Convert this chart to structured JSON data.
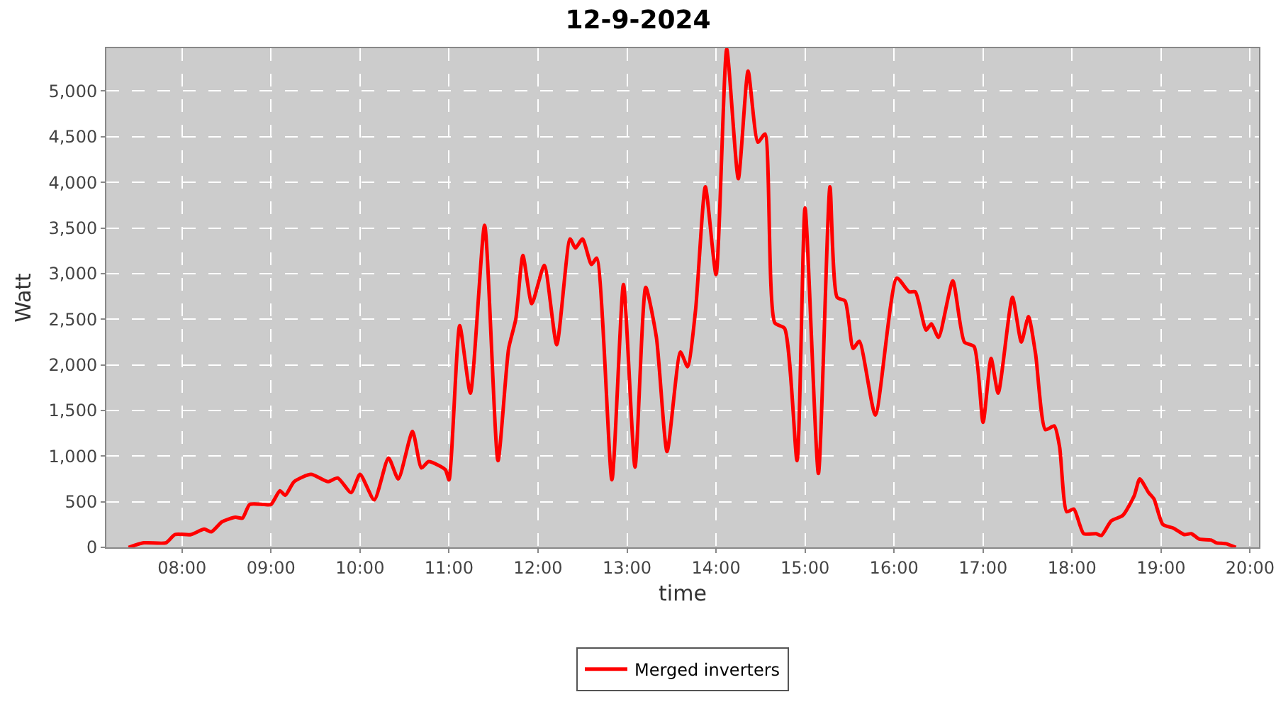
{
  "chart_data": {
    "type": "line",
    "title": "12-9-2024",
    "xlabel": "time",
    "ylabel": "Watt",
    "x": [
      7.4,
      7.57,
      7.82,
      7.92,
      8.1,
      8.25,
      8.33,
      8.45,
      8.6,
      8.68,
      8.76,
      8.92,
      9.0,
      9.1,
      9.16,
      9.26,
      9.45,
      9.64,
      9.75,
      9.9,
      10.0,
      10.16,
      10.32,
      10.43,
      10.59,
      10.69,
      10.77,
      10.88,
      10.96,
      11.0,
      11.12,
      11.24,
      11.4,
      11.55,
      11.67,
      11.75,
      11.83,
      11.93,
      12.07,
      12.21,
      12.36,
      12.42,
      12.5,
      12.6,
      12.66,
      12.83,
      12.96,
      13.09,
      13.21,
      13.33,
      13.45,
      13.6,
      13.68,
      13.77,
      13.88,
      14.0,
      14.12,
      14.25,
      14.36,
      14.47,
      14.55,
      14.66,
      14.77,
      14.91,
      15.0,
      15.15,
      15.28,
      15.36,
      15.45,
      15.54,
      15.61,
      15.79,
      16.03,
      16.17,
      16.24,
      16.36,
      16.42,
      16.5,
      16.66,
      16.79,
      16.9,
      17.0,
      17.09,
      17.17,
      17.33,
      17.43,
      17.51,
      17.59,
      17.7,
      17.8,
      17.86,
      17.94,
      18.02,
      18.13,
      18.27,
      18.33,
      18.44,
      18.57,
      18.7,
      18.76,
      18.86,
      18.92,
      19.02,
      19.14,
      19.26,
      19.34,
      19.43,
      19.56,
      19.62,
      19.73,
      19.84
    ],
    "series": [
      {
        "name": "Merged inverters",
        "color": "#ff0000",
        "values": [
          0,
          50,
          50,
          140,
          140,
          200,
          170,
          280,
          330,
          320,
          470,
          470,
          470,
          620,
          570,
          720,
          800,
          720,
          760,
          600,
          800,
          520,
          980,
          750,
          1270,
          870,
          940,
          900,
          850,
          740,
          2430,
          1690,
          3530,
          950,
          2180,
          2500,
          3200,
          2670,
          3090,
          2220,
          3380,
          3280,
          3380,
          3100,
          3170,
          740,
          2880,
          880,
          2850,
          2300,
          1050,
          2140,
          1980,
          2600,
          3950,
          2990,
          5460,
          4040,
          5220,
          4440,
          4530,
          2460,
          2400,
          950,
          3720,
          810,
          3950,
          2740,
          2700,
          2180,
          2260,
          1450,
          2950,
          2800,
          2800,
          2380,
          2450,
          2300,
          2920,
          2250,
          2200,
          1370,
          2070,
          1690,
          2740,
          2250,
          2530,
          2120,
          1290,
          1330,
          1100,
          390,
          420,
          150,
          150,
          130,
          290,
          350,
          570,
          750,
          600,
          530,
          250,
          210,
          140,
          150,
          90,
          80,
          50,
          40,
          0
        ]
      }
    ],
    "xlim": [
      7.15,
      20.1
    ],
    "xticks": [
      {
        "value": 8,
        "label": "08:00"
      },
      {
        "value": 9,
        "label": "09:00"
      },
      {
        "value": 10,
        "label": "10:00"
      },
      {
        "value": 11,
        "label": "11:00"
      },
      {
        "value": 12,
        "label": "12:00"
      },
      {
        "value": 13,
        "label": "13:00"
      },
      {
        "value": 14,
        "label": "14:00"
      },
      {
        "value": 15,
        "label": "15:00"
      },
      {
        "value": 16,
        "label": "16:00"
      },
      {
        "value": 17,
        "label": "17:00"
      },
      {
        "value": 18,
        "label": "18:00"
      },
      {
        "value": 19,
        "label": "19:00"
      },
      {
        "value": 20,
        "label": "20:00"
      }
    ],
    "ylim": [
      0,
      5470
    ],
    "yticks": [
      0,
      500,
      {
        "value": 1000,
        "label": "1,000"
      },
      {
        "value": 1500,
        "label": "1,500"
      },
      {
        "value": 2000,
        "label": "2,000"
      },
      {
        "value": 2500,
        "label": "2,500"
      },
      {
        "value": 3000,
        "label": "3,000"
      },
      {
        "value": 3500,
        "label": "3,500"
      },
      {
        "value": 4000,
        "label": "4,000"
      },
      {
        "value": 4500,
        "label": "4,500"
      },
      {
        "value": 5000,
        "label": "5,000"
      }
    ],
    "grid": true,
    "legend": "bottom",
    "marker": "none",
    "line_style": "solid"
  }
}
